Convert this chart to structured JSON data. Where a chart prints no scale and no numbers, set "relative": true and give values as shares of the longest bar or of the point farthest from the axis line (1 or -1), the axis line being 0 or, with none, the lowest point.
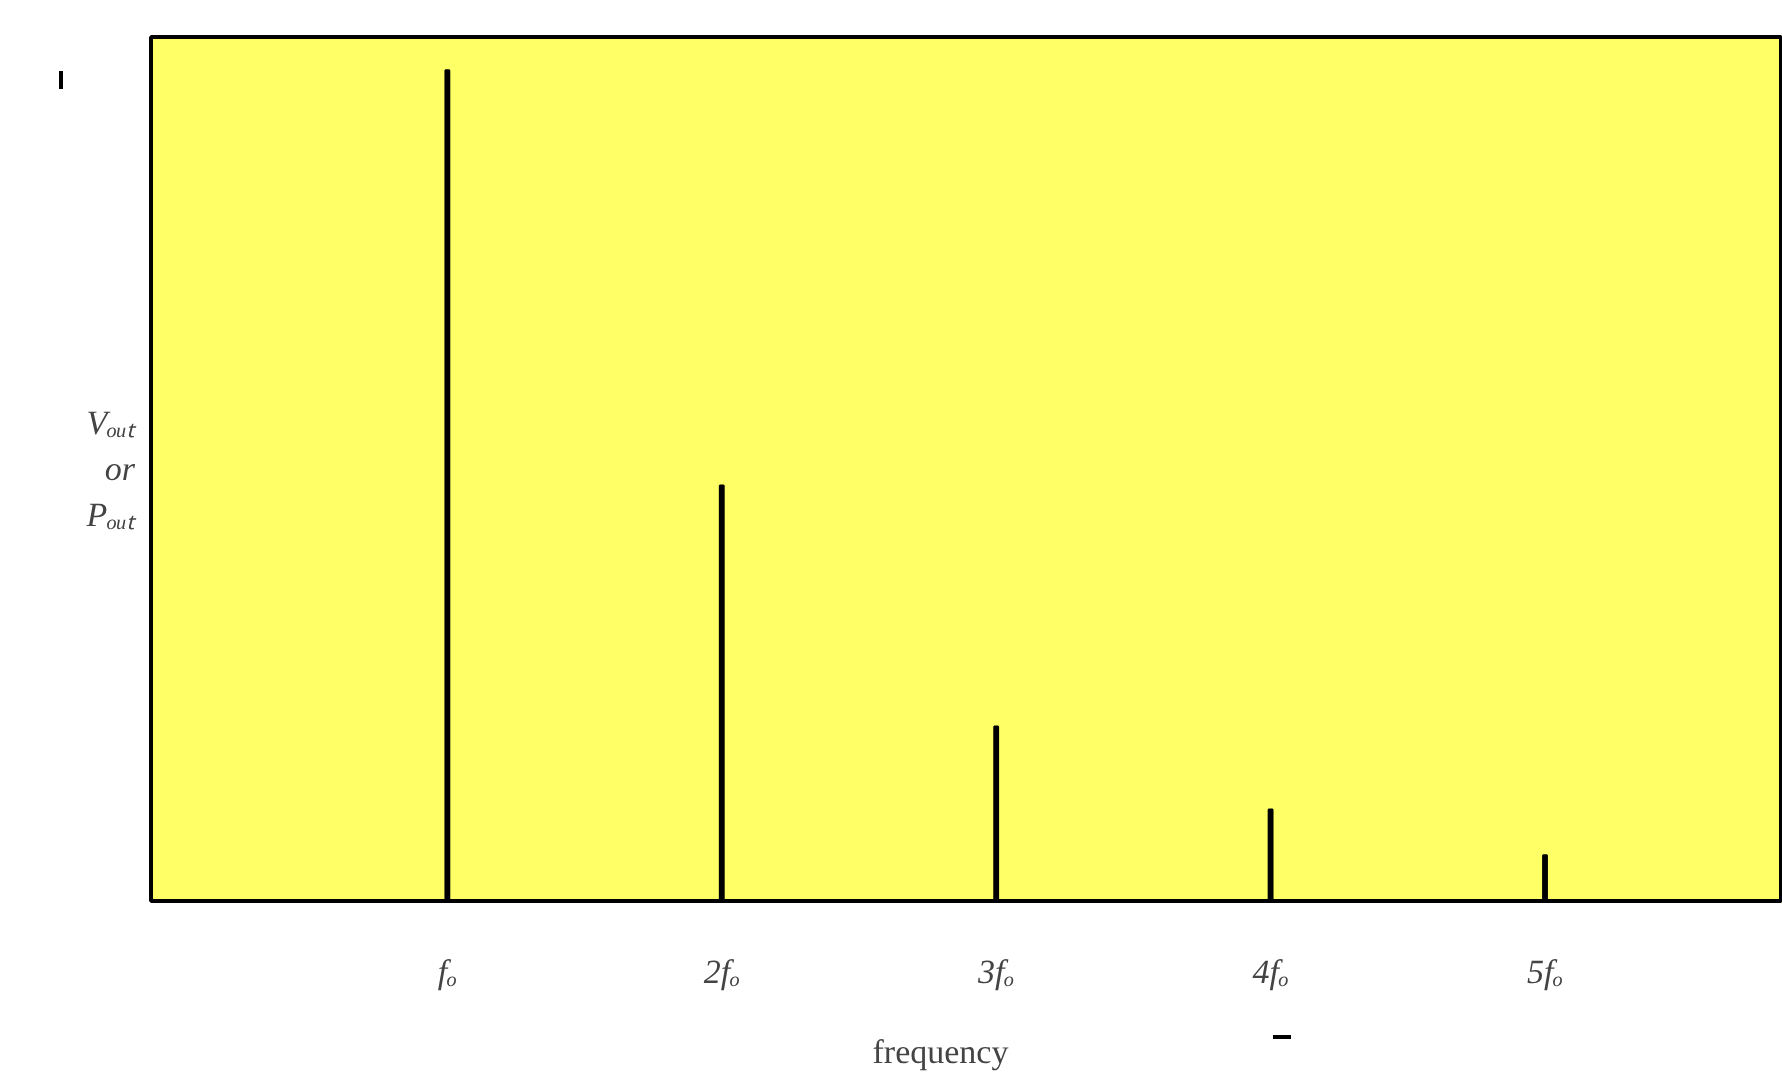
{
  "chart_data": {
    "type": "bar",
    "relative": true,
    "xlabel": "frequency",
    "ylabel": "Vₒᵤₜ or Pₒᵤₜ",
    "categories": [
      "fₒ",
      "2fₒ",
      "3fₒ",
      "4fₒ",
      "5fₒ"
    ],
    "values": [
      1,
      0.5,
      0.21,
      0.11,
      0.055
    ],
    "color": "#000000",
    "grid": false
  }
}
